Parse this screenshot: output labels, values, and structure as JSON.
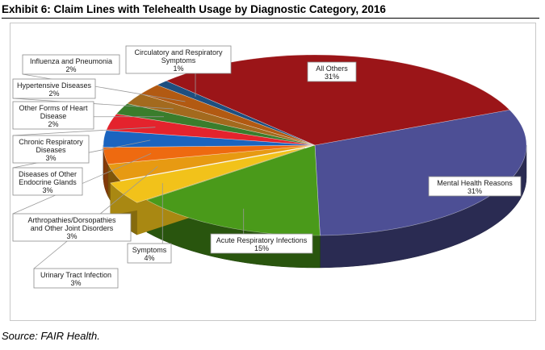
{
  "title": "Exhibit 6: Claim Lines with Telehealth Usage by Diagnostic Category, 2016",
  "source": "Source: FAIR Health.",
  "chart_data": {
    "type": "pie",
    "title": "Exhibit 6: Claim Lines with Telehealth Usage by Diagnostic Category, 2016",
    "style": "3d-exploded",
    "slices": [
      {
        "label": [
          "Mental Health Reasons"
        ],
        "value": 31,
        "value_text": "31%",
        "color": "#4d4f95"
      },
      {
        "label": [
          "Acute Respiratory Infections"
        ],
        "value": 15,
        "value_text": "15%",
        "color": "#4a9a1a"
      },
      {
        "label": [
          "Symptoms"
        ],
        "value": 4,
        "value_text": "4%",
        "color": "#f2c21a"
      },
      {
        "label": [
          "Urinary Tract Infection"
        ],
        "value": 3,
        "value_text": "3%",
        "color": "#e79a12"
      },
      {
        "label": [
          "Arthropathies/Dorsopathies",
          "and Other Joint Disorders"
        ],
        "value": 3,
        "value_text": "3%",
        "color": "#ee6a10"
      },
      {
        "label": [
          "Diseases of Other",
          "Endocrine Glands"
        ],
        "value": 3,
        "value_text": "3%",
        "color": "#1b64bf"
      },
      {
        "label": [
          "Chronic Respiratory",
          "Diseases"
        ],
        "value": 3,
        "value_text": "3%",
        "color": "#e4232d"
      },
      {
        "label": [
          "Other Forms of Heart",
          "Disease"
        ],
        "value": 2,
        "value_text": "2%",
        "color": "#3a7d2c"
      },
      {
        "label": [
          "Hypertensive Diseases"
        ],
        "value": 2,
        "value_text": "2%",
        "color": "#a36a1e"
      },
      {
        "label": [
          "Influenza and Pneumonia"
        ],
        "value": 2,
        "value_text": "2%",
        "color": "#b25a12"
      },
      {
        "label": [
          "Circulatory and Respiratory",
          "Symptoms"
        ],
        "value": 1,
        "value_text": "1%",
        "color": "#1d4f80"
      },
      {
        "label": [
          "All Others"
        ],
        "value": 31,
        "value_text": "31%",
        "color": "#9b1518"
      }
    ]
  }
}
